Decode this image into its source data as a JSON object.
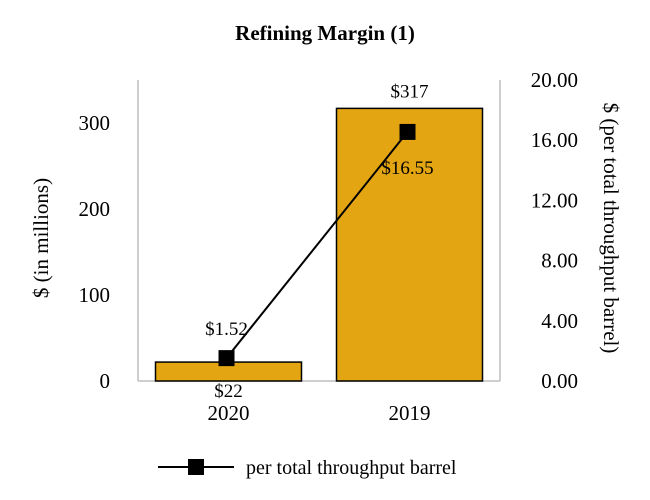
{
  "chart_data": {
    "type": "bar",
    "title": "Refining Margin (1)",
    "categories": [
      "2020",
      "2019"
    ],
    "bars": {
      "name": "Refining Margin",
      "values": [
        22,
        317
      ],
      "labels": [
        "$22",
        "$317"
      ],
      "color": "#E3A512"
    },
    "line": {
      "name": "per total throughput barrel",
      "values": [
        1.52,
        16.55
      ],
      "labels": [
        "$1.52",
        "$16.55"
      ],
      "color": "#000000"
    },
    "y_left": {
      "label": "$ (in millions)",
      "ylim": [
        0,
        350
      ],
      "ticks": [
        0,
        100,
        200,
        300
      ],
      "tick_labels": [
        "0",
        "100",
        "200",
        "300"
      ]
    },
    "y_right": {
      "label": "$ (per total throughput barrel)",
      "ylim": [
        0,
        20
      ],
      "ticks": [
        0,
        4,
        8,
        12,
        16,
        20
      ],
      "tick_labels": [
        "0.00",
        "4.00",
        "8.00",
        "12.00",
        "16.00",
        "20.00"
      ]
    },
    "legend": {
      "position": "bottom",
      "entries": [
        "per total throughput barrel"
      ]
    }
  }
}
